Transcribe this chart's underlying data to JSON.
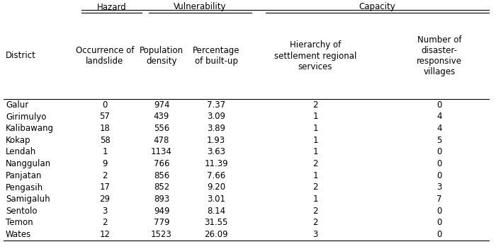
{
  "districts": [
    "Galur",
    "Girimulyo",
    "Kalibawang",
    "Kokap",
    "Lendah",
    "Nanggulan",
    "Panjatan",
    "Pengasih",
    "Samigaluh",
    "Sentolo",
    "Temon",
    "Wates"
  ],
  "occurrence": [
    "0",
    "57",
    "18",
    "58",
    "1",
    "9",
    "2",
    "17",
    "29",
    "3",
    "2",
    "12"
  ],
  "population": [
    "974",
    "439",
    "556",
    "478",
    "1134",
    "766",
    "856",
    "852",
    "893",
    "949",
    "779",
    "1523"
  ],
  "percentage": [
    "7.37",
    "3.09",
    "3.89",
    "1.93",
    "3.63",
    "11.39",
    "7.66",
    "9.20",
    "3.01",
    "8.14",
    "31.55",
    "26.09"
  ],
  "hierarchy": [
    "2",
    "1",
    "1",
    "1",
    "1",
    "2",
    "1",
    "2",
    "1",
    "2",
    "2",
    "3"
  ],
  "villages": [
    "0",
    "4",
    "4",
    "5",
    "0",
    "0",
    "0",
    "3",
    "7",
    "0",
    "0",
    "0"
  ],
  "col_header_district": "District",
  "col_header_col1": "Occurrence of\nlandslide",
  "col_header_col2": "Population\ndensity",
  "col_header_col3": "Percentage\nof built-up",
  "col_header_col4": "Hierarchy of\nsettlement regional\nservices",
  "col_header_col5": "Number of\ndisaster-\nresponsive\nvillages",
  "group_hazard": "Hazard",
  "group_vulnerability": "Vulnerability",
  "group_capacity": "Capacity",
  "bg_color": "#ffffff",
  "text_color": "#000000",
  "font_size": 8.5
}
